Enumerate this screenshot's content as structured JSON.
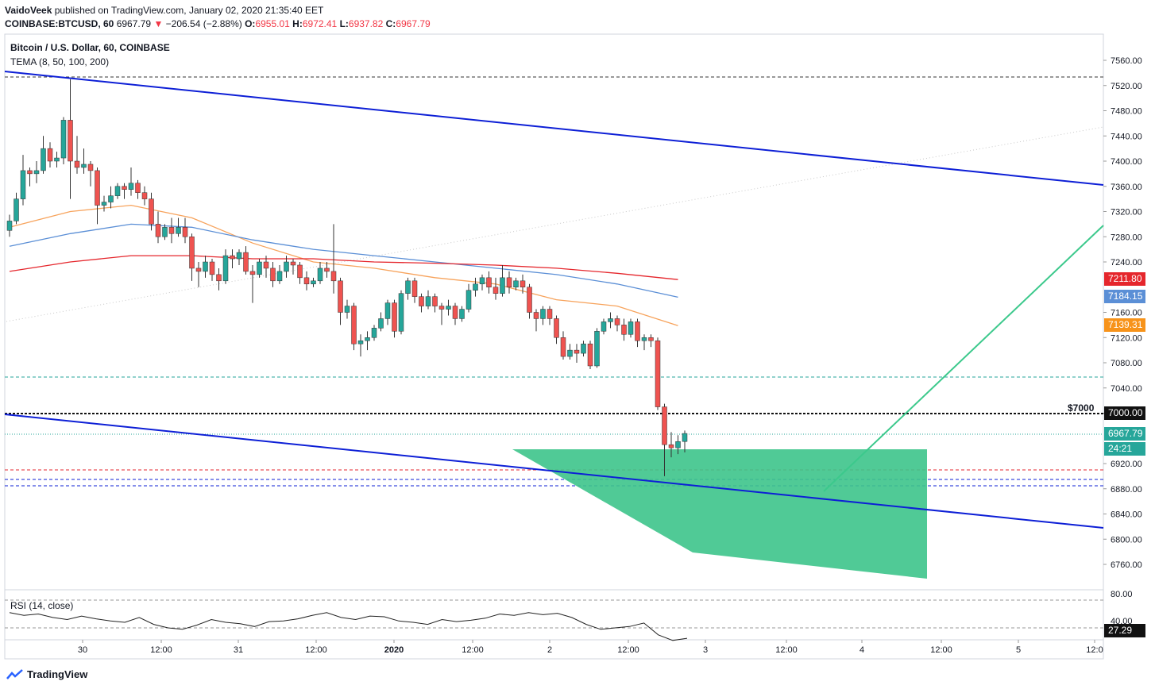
{
  "header": {
    "publisher": "VaidoVeek",
    "published_text": "published on TradingView.com, January 02, 2020 21:35:40 EET",
    "symbol": "COINBASE:BTCUSD, 60",
    "last": "6967.79",
    "change": "−206.54 (−2.88%)",
    "o_label": "O:",
    "o": "6955.01",
    "h_label": "H:",
    "h": "6972.41",
    "l_label": "L:",
    "l": "6937.82",
    "c_label": "C:",
    "c": "6967.79"
  },
  "legend": {
    "symbol": "Bitcoin / U.S. Dollar, 60, COINBASE",
    "study": "TEMA (8, 50, 100, 200)",
    "rsi": "RSI (14, close)"
  },
  "price_tags": {
    "tema200": "7211.80",
    "tema100": "7184.15",
    "tema50": "7139.31",
    "level7000": "7000.00",
    "last": "6967.79",
    "countdown": "24:21",
    "rsi_value": "27.29"
  },
  "annotation": {
    "level_text": "$7000"
  },
  "footer": {
    "brand": "TradingView"
  },
  "colors": {
    "up": "#26a69a",
    "down": "#ef5350",
    "channel": "#0d1fd6",
    "tema50": "#f7a35c",
    "tema100": "#5b8fd6",
    "tema200": "#e5262c",
    "projection": "#3cc98c",
    "target_zone": "#3dc48b"
  },
  "chart_data": {
    "type": "candlestick",
    "interval": "60",
    "y_range": [
      6720,
      7580
    ],
    "y_ticks": [
      6760,
      6800,
      6840,
      6880,
      6920,
      7000,
      7040,
      7080,
      7120,
      7160,
      7240,
      7280,
      7320,
      7360,
      7400,
      7440,
      7480,
      7520,
      7560
    ],
    "x_ticks": [
      "30",
      "12:00",
      "31",
      "12:00",
      "2020",
      "12:00",
      "2",
      "12:00",
      "3",
      "12:00",
      "4",
      "12:00",
      "5",
      "12:0"
    ],
    "rsi_ticks": [
      "80.00",
      "40.00"
    ],
    "candles": [
      [
        7290,
        7305,
        7280,
        7315
      ],
      [
        7305,
        7340,
        7300,
        7350
      ],
      [
        7340,
        7385,
        7330,
        7410
      ],
      [
        7385,
        7380,
        7360,
        7390
      ],
      [
        7380,
        7385,
        7365,
        7400
      ],
      [
        7385,
        7420,
        7380,
        7440
      ],
      [
        7420,
        7400,
        7390,
        7430
      ],
      [
        7400,
        7405,
        7390,
        7415
      ],
      [
        7405,
        7465,
        7395,
        7470
      ],
      [
        7465,
        7400,
        7340,
        7530
      ],
      [
        7400,
        7390,
        7380,
        7440
      ],
      [
        7390,
        7395,
        7380,
        7420
      ],
      [
        7395,
        7385,
        7360,
        7400
      ],
      [
        7385,
        7330,
        7300,
        7390
      ],
      [
        7330,
        7335,
        7320,
        7345
      ],
      [
        7335,
        7345,
        7325,
        7360
      ],
      [
        7345,
        7360,
        7340,
        7365
      ],
      [
        7360,
        7355,
        7340,
        7365
      ],
      [
        7355,
        7365,
        7345,
        7390
      ],
      [
        7365,
        7350,
        7340,
        7370
      ],
      [
        7350,
        7340,
        7330,
        7360
      ],
      [
        7340,
        7300,
        7290,
        7350
      ],
      [
        7300,
        7280,
        7270,
        7320
      ],
      [
        7280,
        7295,
        7275,
        7300
      ],
      [
        7295,
        7285,
        7270,
        7310
      ],
      [
        7285,
        7295,
        7280,
        7310
      ],
      [
        7295,
        7280,
        7270,
        7310
      ],
      [
        7280,
        7230,
        7210,
        7285
      ],
      [
        7230,
        7225,
        7200,
        7240
      ],
      [
        7225,
        7240,
        7215,
        7250
      ],
      [
        7240,
        7220,
        7210,
        7245
      ],
      [
        7220,
        7210,
        7195,
        7230
      ],
      [
        7210,
        7250,
        7205,
        7260
      ],
      [
        7250,
        7245,
        7230,
        7260
      ],
      [
        7245,
        7255,
        7235,
        7260
      ],
      [
        7255,
        7225,
        7220,
        7265
      ],
      [
        7225,
        7220,
        7175,
        7235
      ],
      [
        7220,
        7240,
        7215,
        7245
      ],
      [
        7240,
        7230,
        7215,
        7250
      ],
      [
        7230,
        7210,
        7200,
        7240
      ],
      [
        7210,
        7225,
        7205,
        7235
      ],
      [
        7225,
        7240,
        7215,
        7250
      ],
      [
        7240,
        7235,
        7220,
        7245
      ],
      [
        7235,
        7215,
        7205,
        7240
      ],
      [
        7215,
        7205,
        7195,
        7225
      ],
      [
        7205,
        7210,
        7200,
        7215
      ],
      [
        7210,
        7230,
        7205,
        7240
      ],
      [
        7230,
        7225,
        7215,
        7240
      ],
      [
        7225,
        7210,
        7190,
        7300
      ],
      [
        7210,
        7160,
        7140,
        7215
      ],
      [
        7160,
        7170,
        7150,
        7180
      ],
      [
        7170,
        7110,
        7100,
        7175
      ],
      [
        7110,
        7115,
        7090,
        7125
      ],
      [
        7115,
        7120,
        7100,
        7130
      ],
      [
        7120,
        7135,
        7115,
        7140
      ],
      [
        7135,
        7150,
        7130,
        7160
      ],
      [
        7150,
        7175,
        7140,
        7180
      ],
      [
        7175,
        7130,
        7120,
        7180
      ],
      [
        7130,
        7190,
        7125,
        7195
      ],
      [
        7190,
        7210,
        7180,
        7215
      ],
      [
        7210,
        7185,
        7175,
        7215
      ],
      [
        7185,
        7170,
        7160,
        7190
      ],
      [
        7170,
        7185,
        7165,
        7195
      ],
      [
        7185,
        7170,
        7160,
        7190
      ],
      [
        7170,
        7165,
        7140,
        7175
      ],
      [
        7165,
        7170,
        7155,
        7180
      ],
      [
        7170,
        7150,
        7140,
        7175
      ],
      [
        7150,
        7165,
        7145,
        7170
      ],
      [
        7165,
        7195,
        7160,
        7205
      ],
      [
        7195,
        7205,
        7185,
        7215
      ],
      [
        7205,
        7215,
        7195,
        7220
      ],
      [
        7215,
        7200,
        7190,
        7225
      ],
      [
        7200,
        7190,
        7180,
        7215
      ],
      [
        7190,
        7215,
        7185,
        7235
      ],
      [
        7215,
        7200,
        7190,
        7225
      ],
      [
        7200,
        7210,
        7195,
        7215
      ],
      [
        7210,
        7200,
        7190,
        7220
      ],
      [
        7200,
        7160,
        7150,
        7205
      ],
      [
        7160,
        7150,
        7130,
        7165
      ],
      [
        7150,
        7165,
        7140,
        7170
      ],
      [
        7165,
        7150,
        7140,
        7170
      ],
      [
        7150,
        7120,
        7110,
        7155
      ],
      [
        7120,
        7090,
        7085,
        7130
      ],
      [
        7090,
        7100,
        7085,
        7110
      ],
      [
        7100,
        7095,
        7080,
        7110
      ],
      [
        7095,
        7110,
        7090,
        7115
      ],
      [
        7110,
        7075,
        7070,
        7115
      ],
      [
        7075,
        7130,
        7072,
        7135
      ],
      [
        7130,
        7145,
        7125,
        7150
      ],
      [
        7145,
        7150,
        7135,
        7160
      ],
      [
        7150,
        7140,
        7130,
        7155
      ],
      [
        7140,
        7125,
        7115,
        7150
      ],
      [
        7125,
        7145,
        7120,
        7150
      ],
      [
        7145,
        7115,
        7105,
        7150
      ],
      [
        7115,
        7120,
        7100,
        7125
      ],
      [
        7120,
        7115,
        7105,
        7125
      ],
      [
        7115,
        7010,
        7005,
        7120
      ],
      [
        7010,
        6950,
        6900,
        7015
      ],
      [
        6950,
        6945,
        6930,
        6970
      ],
      [
        6945,
        6955,
        6935,
        6965
      ],
      [
        6955,
        6967.79,
        6937.82,
        6972.41
      ]
    ],
    "tema50": [
      [
        0,
        7295
      ],
      [
        9,
        7320
      ],
      [
        18,
        7330
      ],
      [
        27,
        7310
      ],
      [
        36,
        7270
      ],
      [
        45,
        7240
      ],
      [
        54,
        7230
      ],
      [
        63,
        7215
      ],
      [
        72,
        7205
      ],
      [
        81,
        7180
      ],
      [
        90,
        7170
      ],
      [
        99,
        7139
      ]
    ],
    "tema100": [
      [
        0,
        7265
      ],
      [
        9,
        7285
      ],
      [
        18,
        7300
      ],
      [
        27,
        7295
      ],
      [
        36,
        7275
      ],
      [
        45,
        7260
      ],
      [
        54,
        7250
      ],
      [
        63,
        7240
      ],
      [
        72,
        7230
      ],
      [
        81,
        7220
      ],
      [
        90,
        7205
      ],
      [
        99,
        7184
      ]
    ],
    "tema200": [
      [
        0,
        7225
      ],
      [
        9,
        7240
      ],
      [
        18,
        7250
      ],
      [
        27,
        7250
      ],
      [
        36,
        7245
      ],
      [
        45,
        7245
      ],
      [
        54,
        7240
      ],
      [
        63,
        7238
      ],
      [
        72,
        7235
      ],
      [
        81,
        7230
      ],
      [
        90,
        7222
      ],
      [
        99,
        7212
      ]
    ],
    "rsi": [
      62,
      58,
      60,
      55,
      52,
      57,
      53,
      50,
      48,
      55,
      45,
      40,
      38,
      44,
      52,
      48,
      46,
      42,
      49,
      50,
      53,
      58,
      62,
      55,
      52,
      57,
      56,
      50,
      48,
      45,
      52,
      49,
      51,
      54,
      60,
      58,
      62,
      59,
      61,
      55,
      45,
      38,
      40,
      42,
      47,
      30,
      22,
      25
    ]
  }
}
